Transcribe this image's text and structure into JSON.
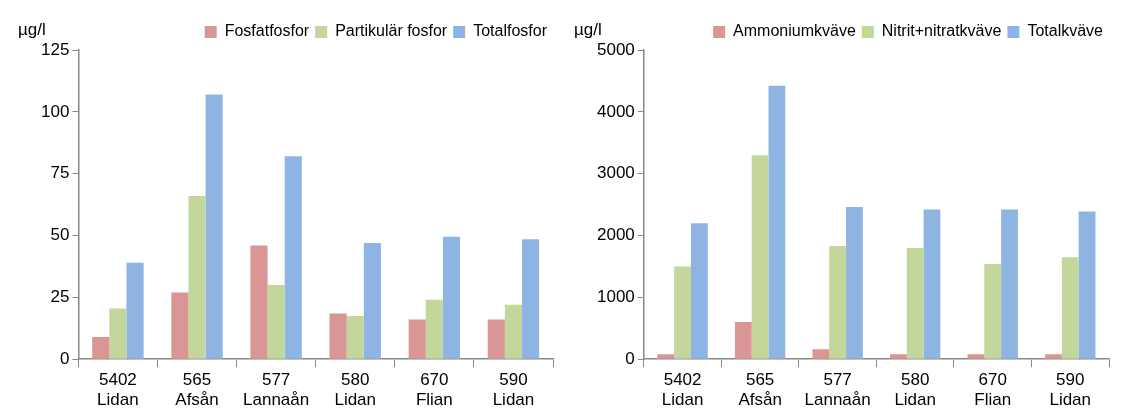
{
  "chart_data": [
    {
      "type": "bar",
      "ylabel": "µg/l",
      "categories": [
        "5402\nLidan",
        "565\nAfsån",
        "577\nLannaån",
        "580\nLidan",
        "670\nFlian",
        "590\nLidan"
      ],
      "series": [
        {
          "name": "Fosfatfosfor",
          "color": "#d99694",
          "values": [
            9,
            27,
            46,
            18.5,
            16,
            16
          ]
        },
        {
          "name": "Partikulär fosfor",
          "color": "#c3d69b",
          "values": [
            20.5,
            66,
            30,
            17.5,
            24,
            22
          ]
        },
        {
          "name": "Totalfosfor",
          "color": "#8eb4e3",
          "values": [
            39,
            107,
            82,
            47,
            49.5,
            48.5
          ]
        }
      ],
      "ylim": [
        0,
        125
      ],
      "yticks": [
        0,
        25,
        50,
        75,
        100,
        125
      ],
      "grid": false,
      "legend": "top right"
    },
    {
      "type": "bar",
      "ylabel": "µg/l",
      "categories": [
        "5402\nLidan",
        "565\nAfsån",
        "577\nLannaån",
        "580\nLidan",
        "670\nFlian",
        "590\nLidan"
      ],
      "series": [
        {
          "name": "Ammoniumkväve",
          "color": "#d99694",
          "values": [
            80,
            600,
            160,
            80,
            80,
            80
          ]
        },
        {
          "name": "Nitrit+nitratkväve",
          "color": "#c3d69b",
          "values": [
            1500,
            3300,
            1830,
            1800,
            1540,
            1650
          ]
        },
        {
          "name": "Totalkväve",
          "color": "#8eb4e3",
          "values": [
            2200,
            4420,
            2460,
            2420,
            2420,
            2390
          ]
        }
      ],
      "ylim": [
        0,
        5000
      ],
      "yticks": [
        0,
        1000,
        2000,
        3000,
        4000,
        5000
      ],
      "grid": false,
      "legend": "top right"
    }
  ]
}
